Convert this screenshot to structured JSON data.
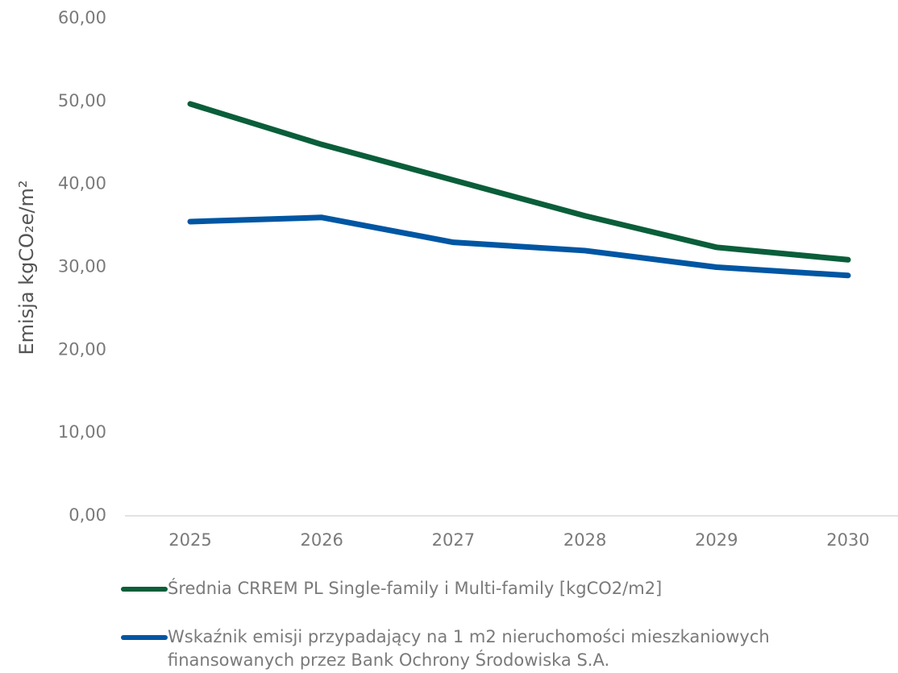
{
  "chart_data": {
    "type": "line",
    "y_label": "Emisja kgCO₂e/m²",
    "categories": [
      "2025",
      "2026",
      "2027",
      "2028",
      "2029",
      "2030"
    ],
    "series": [
      {
        "name": "Średnia CRREM PL Single-family i Multi-family [kgCO2/m2]",
        "color": "#0a5e3a",
        "values": [
          49.7,
          44.8,
          40.5,
          36.2,
          32.4,
          30.9
        ]
      },
      {
        "name": "Wskaźnik emisji przypadający na 1 m2 nieruchomości mieszkaniowych finansowanych przez Bank Ochrony Środowiska S.A.",
        "color": "#0056a3",
        "values": [
          35.5,
          36.0,
          33.0,
          32.0,
          30.0,
          29.0
        ]
      }
    ],
    "ylim": [
      0,
      60
    ],
    "yticks": [
      {
        "value": 0,
        "label": "0,00"
      },
      {
        "value": 10,
        "label": "10,00"
      },
      {
        "value": 20,
        "label": "20,00"
      },
      {
        "value": 30,
        "label": "30,00"
      },
      {
        "value": 40,
        "label": "40,00"
      },
      {
        "value": 50,
        "label": "50,00"
      },
      {
        "value": 60,
        "label": "60,00"
      }
    ],
    "grid": false,
    "legend": "bottom"
  }
}
